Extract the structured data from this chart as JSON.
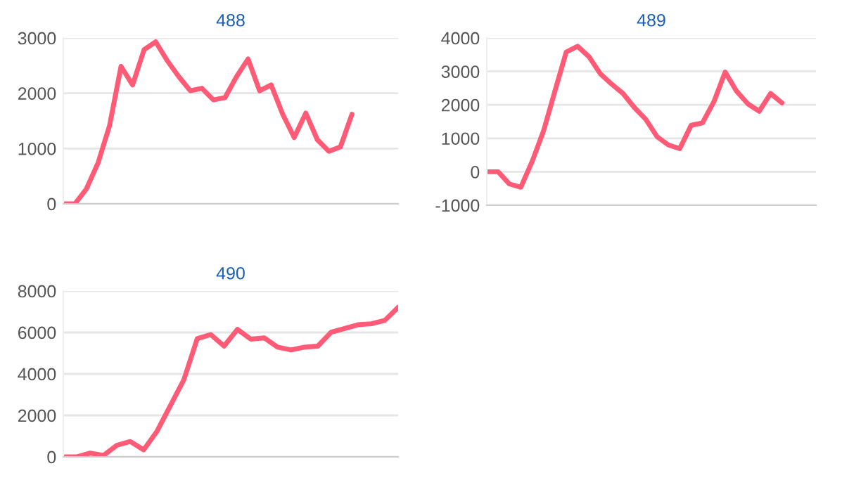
{
  "chart_data": [
    {
      "type": "line",
      "title": "488",
      "categories": [
        null,
        null,
        null,
        null,
        null,
        null,
        null,
        null,
        null,
        null,
        null,
        null,
        null,
        null,
        null,
        null,
        null,
        null,
        null,
        null,
        null,
        null,
        null,
        null,
        null,
        null,
        null,
        null,
        null,
        null
      ],
      "series": [
        {
          "color": "#ff5a76",
          "values": [
            0,
            0,
            270,
            735,
            1410,
            2485,
            2150,
            2790,
            2930,
            2590,
            2300,
            2045,
            2090,
            1880,
            1920,
            2300,
            2620,
            2045,
            2150,
            1620,
            1200,
            1640,
            1160,
            950,
            1030,
            1620,
            null,
            null,
            null,
            null
          ]
        }
      ],
      "ylim": [
        0,
        3000
      ],
      "yticks": [
        0,
        1000,
        2000,
        3000
      ],
      "grid": "y",
      "tick_labels": "y",
      "marker": "none",
      "line_style": "solid"
    },
    {
      "type": "line",
      "title": "489",
      "categories": [
        null,
        null,
        null,
        null,
        null,
        null,
        null,
        null,
        null,
        null,
        null,
        null,
        null,
        null,
        null,
        null,
        null,
        null,
        null,
        null,
        null,
        null,
        null,
        null,
        null,
        null,
        null,
        null,
        null,
        null
      ],
      "series": [
        {
          "color": "#ff5a76",
          "values": [
            0,
            0,
            -365,
            -460,
            310,
            1220,
            2410,
            3580,
            3750,
            3440,
            2930,
            2620,
            2340,
            1920,
            1570,
            1050,
            800,
            690,
            1390,
            1460,
            2090,
            2980,
            2410,
            2030,
            1810,
            2340,
            2060,
            null,
            null,
            null
          ]
        }
      ],
      "ylim": [
        -1000,
        4000
      ],
      "yticks": [
        -1000,
        0,
        1000,
        2000,
        3000,
        4000
      ],
      "grid": "y",
      "tick_labels": "y",
      "marker": "none",
      "line_style": "solid"
    },
    {
      "type": "line",
      "title": "490",
      "categories": [
        null,
        null,
        null,
        null,
        null,
        null,
        null,
        null,
        null,
        null,
        null,
        null,
        null,
        null,
        null,
        null,
        null,
        null,
        null,
        null,
        null,
        null,
        null,
        null,
        null,
        null
      ],
      "series": [
        {
          "color": "#ff5a76",
          "values": [
            0,
            0,
            180,
            70,
            560,
            740,
            340,
            1240,
            2480,
            3720,
            5700,
            5900,
            5340,
            6150,
            5680,
            5740,
            5290,
            5160,
            5290,
            5340,
            6010,
            6190,
            6370,
            6420,
            6580,
            7210
          ]
        }
      ],
      "ylim": [
        0,
        8000
      ],
      "yticks": [
        0,
        2000,
        4000,
        6000,
        8000
      ],
      "grid": "y",
      "tick_labels": "y",
      "marker": "none",
      "line_style": "solid"
    }
  ]
}
